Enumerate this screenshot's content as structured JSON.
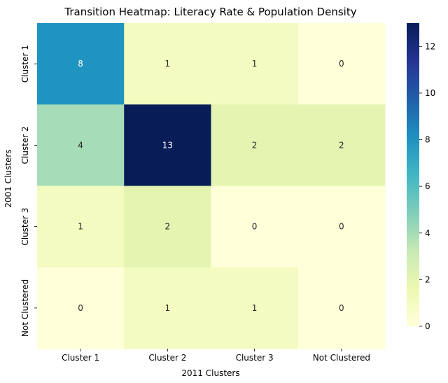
{
  "chart_data": {
    "type": "heatmap",
    "title": "Transition Heatmap: Literacy Rate & Population Density",
    "xlabel": "2011 Clusters",
    "ylabel": "2001 Clusters",
    "x_categories": [
      "Cluster 1",
      "Cluster 2",
      "Cluster 3",
      "Not Clustered"
    ],
    "y_categories": [
      "Cluster 1",
      "Cluster 2",
      "Cluster 3",
      "Not Clustered"
    ],
    "values": [
      [
        8,
        1,
        1,
        0
      ],
      [
        4,
        13,
        2,
        2
      ],
      [
        1,
        2,
        0,
        0
      ],
      [
        0,
        1,
        1,
        0
      ]
    ],
    "colorbar": {
      "min": 0,
      "max": 13,
      "ticks": [
        "0",
        "2",
        "4",
        "6",
        "8",
        "10",
        "12"
      ],
      "colormap": "YlGnBu"
    }
  }
}
